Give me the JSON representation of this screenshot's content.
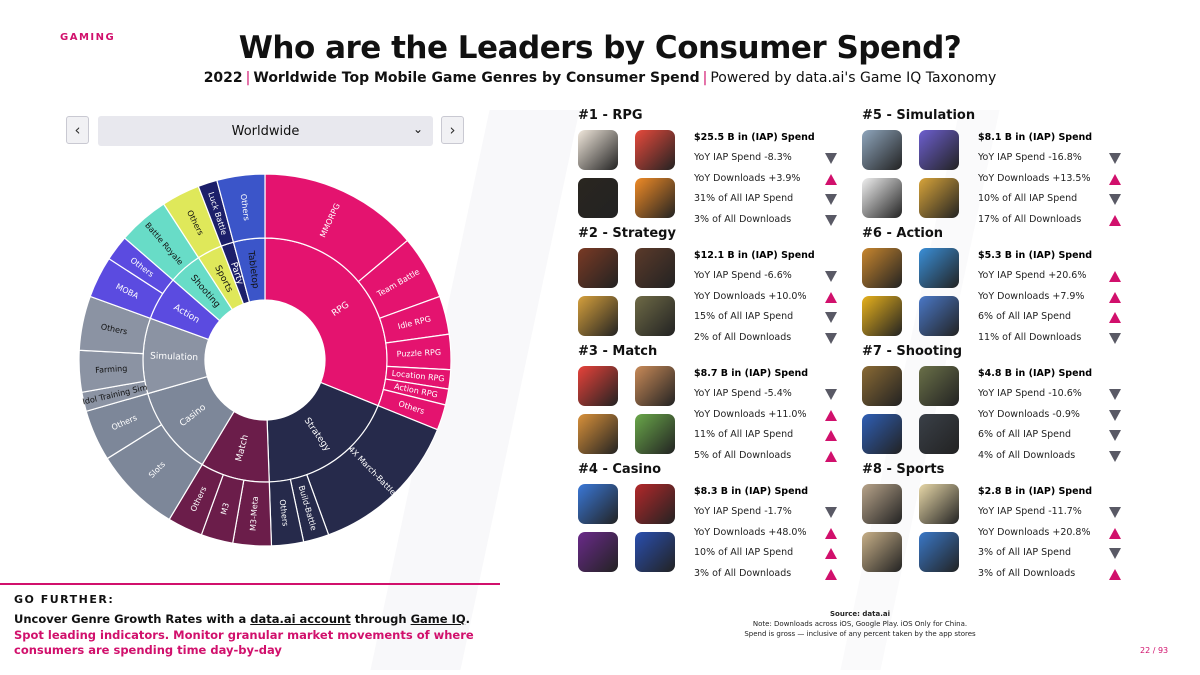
{
  "header": {
    "tag": "GAMING",
    "title": "Who are the Leaders by Consumer Spend?",
    "subtitle_bold": "2022",
    "subtitle_mid": "Worldwide Top Mobile Game Genres by Consumer Spend",
    "subtitle_tail": "Powered by data.ai's Game IQ Taxonomy",
    "separator": "|"
  },
  "selector": {
    "value": "Worldwide",
    "prev_icon": "‹",
    "next_icon": "›",
    "dropdown_icon": "⌄"
  },
  "chart_data": {
    "type": "sunburst",
    "colors": {
      "RPG": "#e4136f",
      "Strategy": "#262a4b",
      "Match": "#6b1d4a",
      "Casino": "#7d8799",
      "Simulation": "#8b93a3",
      "Action": "#5b4be0",
      "Shooting": "#68dcc7",
      "Sports": "#dfe85a",
      "Party": "#1c1f6a",
      "Tabletop": "#3b55c9"
    },
    "inner": [
      "RPG",
      "Strategy",
      "Match",
      "Casino",
      "Simulation",
      "Action",
      "Shooting",
      "Sports",
      "Party",
      "Tabletop"
    ],
    "outer": [
      "MMORPG",
      "Team Battle",
      "Idle RPG",
      "Puzzle RPG",
      "Location RPG",
      "Action RPG",
      "Others",
      "4X March-Battle",
      "Build-Battle",
      "Others",
      "M3-Meta",
      "M3",
      "Others",
      "Slots",
      "Others",
      "Idol Training Sim",
      "Farming",
      "Others",
      "MOBA",
      "Others",
      "Battle Royale",
      "Others",
      "Luck Battle",
      "Others"
    ]
  },
  "genres": [
    {
      "rank": "#1 - RPG",
      "spend": "$25.5 B in (IAP) Spend",
      "stats": [
        {
          "text": "YoY IAP Spend -8.3%",
          "dir": "down"
        },
        {
          "text": "YoY Downloads +3.9%",
          "dir": "up"
        },
        {
          "text": "31% of All IAP Spend",
          "dir": "down"
        },
        {
          "text": "3% of All Downloads",
          "dir": "down"
        }
      ],
      "icons": [
        "#f1e8dc",
        "#e84a3c",
        "#2a2620",
        "#f08b26"
      ]
    },
    {
      "rank": "#2 - Strategy",
      "spend": "$12.1 B in (IAP) Spend",
      "stats": [
        {
          "text": "YoY IAP Spend -6.6%",
          "dir": "down"
        },
        {
          "text": "YoY Downloads +10.0%",
          "dir": "up"
        },
        {
          "text": "15% of All IAP Spend",
          "dir": "down"
        },
        {
          "text": "2% of All Downloads",
          "dir": "down"
        }
      ],
      "icons": [
        "#7a3a24",
        "#5b3a2a",
        "#d6a03c",
        "#6e6a46"
      ]
    },
    {
      "rank": "#3 - Match",
      "spend": "$8.7 B in (IAP) Spend",
      "stats": [
        {
          "text": "YoY IAP Spend -5.4%",
          "dir": "down"
        },
        {
          "text": "YoY Downloads +11.0%",
          "dir": "up"
        },
        {
          "text": "11% of All IAP Spend",
          "dir": "up"
        },
        {
          "text": "5% of All Downloads",
          "dir": "up"
        }
      ],
      "icons": [
        "#e8423a",
        "#c98a58",
        "#d9913a",
        "#6aa84a"
      ]
    },
    {
      "rank": "#4 - Casino",
      "spend": "$8.3 B in (IAP) Spend",
      "stats": [
        {
          "text": "YoY IAP Spend -1.7%",
          "dir": "down"
        },
        {
          "text": "YoY Downloads +48.0%",
          "dir": "up"
        },
        {
          "text": "10% of All IAP Spend",
          "dir": "up"
        },
        {
          "text": "3% of All Downloads",
          "dir": "up"
        }
      ],
      "icons": [
        "#3a78d8",
        "#b3282a",
        "#6a2a8a",
        "#2a4fb0"
      ]
    },
    {
      "rank": "#5 - Simulation",
      "spend": "$8.1 B in (IAP) Spend",
      "stats": [
        {
          "text": "YoY IAP Spend -16.8%",
          "dir": "down"
        },
        {
          "text": "YoY Downloads +13.5%",
          "dir": "up"
        },
        {
          "text": "10% of All IAP Spend",
          "dir": "down"
        },
        {
          "text": "17% of All Downloads",
          "dir": "up"
        }
      ],
      "icons": [
        "#8fa6bd",
        "#6d5fd0",
        "#f0f0f0",
        "#d8a43a"
      ]
    },
    {
      "rank": "#6 - Action",
      "spend": "$5.3 B in (IAP) Spend",
      "stats": [
        {
          "text": "YoY IAP Spend +20.6%",
          "dir": "up"
        },
        {
          "text": "YoY Downloads +7.9%",
          "dir": "up"
        },
        {
          "text": "6% of All IAP Spend",
          "dir": "up"
        },
        {
          "text": "11% of All Downloads",
          "dir": "down"
        }
      ],
      "icons": [
        "#c8862e",
        "#3a8fd8",
        "#e8b21c",
        "#4a78c8"
      ]
    },
    {
      "rank": "#7 - Shooting",
      "spend": "$4.8 B in (IAP) Spend",
      "stats": [
        {
          "text": "YoY IAP Spend -10.6%",
          "dir": "down"
        },
        {
          "text": "YoY Downloads -0.9%",
          "dir": "down"
        },
        {
          "text": "6% of All IAP Spend",
          "dir": "down"
        },
        {
          "text": "4% of All Downloads",
          "dir": "down"
        }
      ],
      "icons": [
        "#8a6a34",
        "#6a7048",
        "#2f5fb6",
        "#3a4048"
      ]
    },
    {
      "rank": "#8 - Sports",
      "spend": "$2.8 B in (IAP) Spend",
      "stats": [
        {
          "text": "YoY IAP Spend -11.7%",
          "dir": "down"
        },
        {
          "text": "YoY Downloads +20.8%",
          "dir": "up"
        },
        {
          "text": "3% of All IAP Spend",
          "dir": "down"
        },
        {
          "text": "3% of All Downloads",
          "dir": "up"
        }
      ],
      "icons": [
        "#b8a48a",
        "#e8d8a8",
        "#c8b088",
        "#3a78c8"
      ]
    }
  ],
  "footer": {
    "label": "GO FURTHER:",
    "main_pre": "Uncover Genre Growth Rates with a ",
    "link1": "data.ai account",
    "main_mid": " through ",
    "link2": "Game IQ",
    "main_post": ".",
    "pink": "Spot leading indicators. Monitor granular market movements of where consumers are spending time day-by-day",
    "source_label": "Source: data.ai",
    "note1": "Note: Downloads across iOS, Google Play. iOS Only for China.",
    "note2": "Spend is gross — inclusive of any percent taken by the app stores",
    "page": "22 / 93"
  }
}
